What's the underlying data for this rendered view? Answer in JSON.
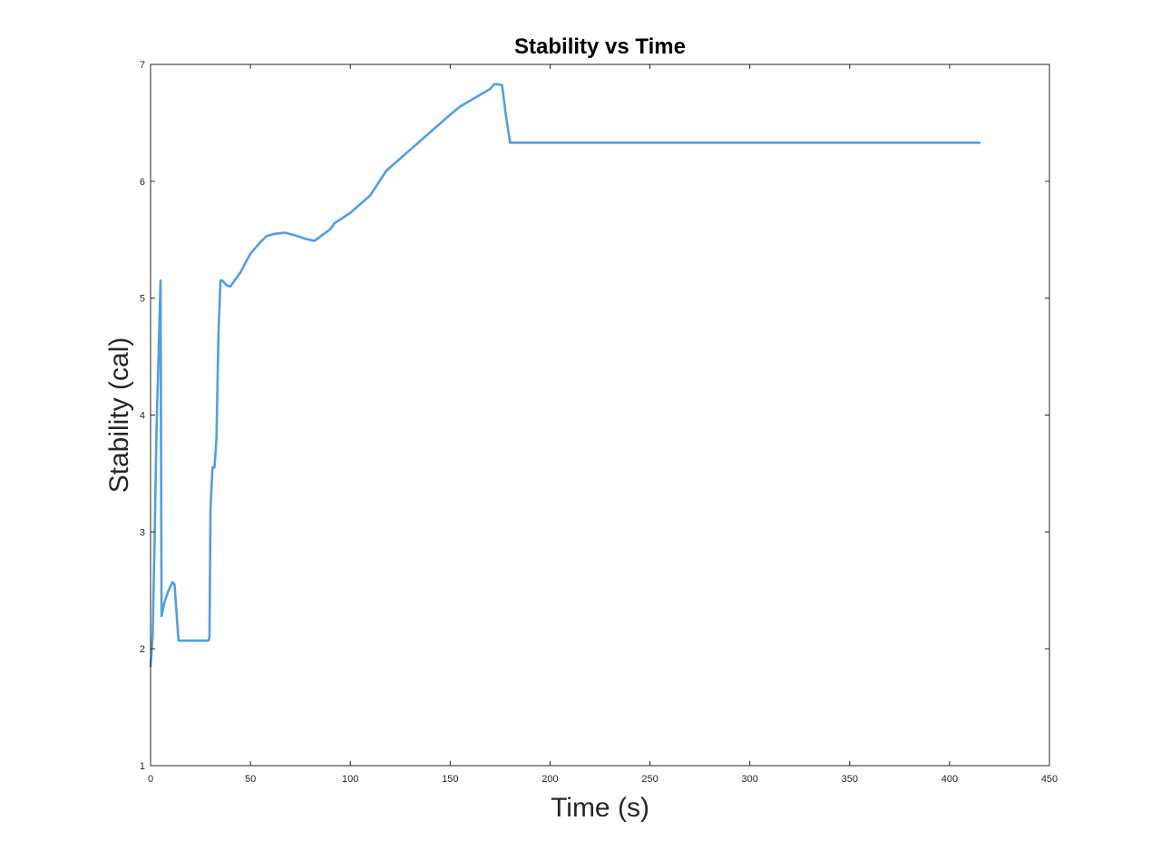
{
  "chart_data": {
    "type": "line",
    "title": "Stability vs Time",
    "xlabel": "Time (s)",
    "ylabel": "Stability (cal)",
    "xlim": [
      0,
      450
    ],
    "ylim": [
      1,
      7
    ],
    "xticks": [
      0,
      50,
      100,
      150,
      200,
      250,
      300,
      350,
      400,
      450
    ],
    "yticks": [
      1,
      2,
      3,
      4,
      5,
      6,
      7
    ],
    "grid": false,
    "box": true,
    "colors": {
      "series": "#4d9eed",
      "axes": "#262626",
      "background": "#ffffff"
    },
    "series": [
      {
        "x": [
          0,
          1,
          2,
          3,
          4,
          5,
          5.5,
          7,
          9,
          11,
          12,
          14,
          20,
          25,
          29,
          29.5,
          30,
          31,
          32,
          33,
          34,
          35,
          36,
          38,
          40,
          42,
          45,
          48,
          50,
          55,
          58,
          62,
          67,
          72,
          77,
          82,
          86,
          90,
          92,
          100,
          110,
          118,
          130,
          140,
          150,
          155,
          160,
          165,
          170,
          172,
          174,
          176,
          178,
          180,
          200,
          250,
          300,
          350,
          400,
          415
        ],
        "y": [
          1.85,
          2.1,
          2.9,
          3.9,
          4.5,
          5.15,
          2.28,
          2.4,
          2.5,
          2.57,
          2.55,
          2.07,
          2.07,
          2.07,
          2.07,
          2.1,
          3.2,
          3.55,
          3.55,
          3.8,
          4.7,
          5.15,
          5.15,
          5.11,
          5.1,
          5.15,
          5.22,
          5.32,
          5.38,
          5.48,
          5.53,
          5.55,
          5.56,
          5.54,
          5.51,
          5.49,
          5.54,
          5.59,
          5.64,
          5.73,
          5.88,
          6.09,
          6.27,
          6.42,
          6.57,
          6.64,
          6.69,
          6.74,
          6.79,
          6.83,
          6.83,
          6.82,
          6.55,
          6.33,
          6.33,
          6.33,
          6.33,
          6.33,
          6.33,
          6.33
        ]
      }
    ]
  }
}
